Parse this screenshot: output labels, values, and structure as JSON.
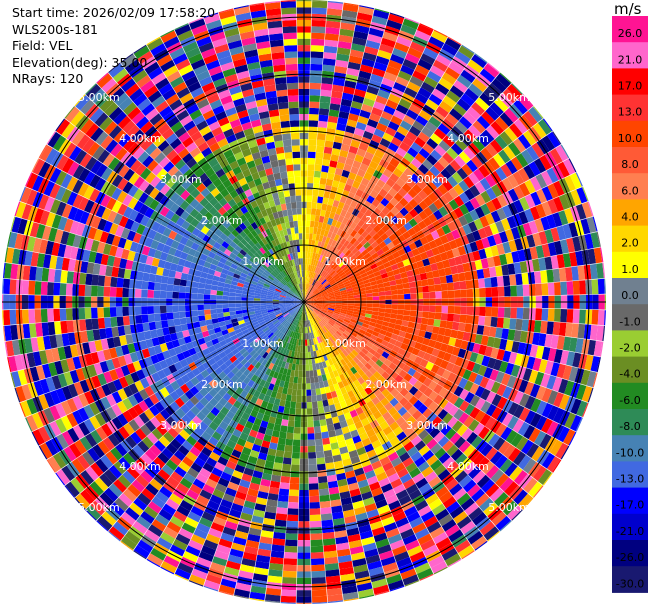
{
  "header": {
    "start_time": "Start time: 2026/02/09 17:58:20",
    "site": "WLS200s-181",
    "field": "Field: VEL",
    "elevation": "Elevation(deg): 35.00",
    "nrays": "NRays: 120"
  },
  "chart_data": {
    "type": "heatmap",
    "projection": "polar-ppi",
    "nrays": 120,
    "ring_ranges_km": [
      1.0,
      2.0,
      3.0,
      4.0,
      5.0
    ],
    "ring_labels": [
      "1.00km",
      "2.00km",
      "3.00km",
      "4.00km",
      "5.00km"
    ],
    "max_range_km": 5.3,
    "pattern": {
      "near_range_km": 3.0,
      "description_sectors": [
        {
          "azimuth_deg": 0,
          "approx_vel": 0.0
        },
        {
          "azimuth_deg": 30,
          "approx_vel": 6.0
        },
        {
          "azimuth_deg": 90,
          "approx_vel": 12.0
        },
        {
          "azimuth_deg": 150,
          "approx_vel": 4.0
        },
        {
          "azimuth_deg": 180,
          "approx_vel": 0.0
        },
        {
          "azimuth_deg": 210,
          "approx_vel": -8.0
        },
        {
          "azimuth_deg": 270,
          "approx_vel": -14.0
        },
        {
          "azimuth_deg": 330,
          "approx_vel": -8.0
        }
      ]
    },
    "colorbar": {
      "unit": "m/s",
      "ticks": [
        "26.0",
        "21.0",
        "17.0",
        "13.0",
        "10.0",
        "8.0",
        "6.0",
        "4.0",
        "2.0",
        "1.0",
        "0.0",
        "-1.0",
        "-2.0",
        "-4.0",
        "-6.0",
        "-8.0",
        "-10.0",
        "-13.0",
        "-17.0",
        "-21.0",
        "-26.0",
        "-30.0"
      ],
      "colors": [
        "#ff1493",
        "#ff66cc",
        "#ff0000",
        "#ff3333",
        "#ff4500",
        "#ff5a36",
        "#ff7f50",
        "#ffa500",
        "#ffd700",
        "#ffff00",
        "#708090",
        "#696969",
        "#9acd32",
        "#6b8e23",
        "#228b22",
        "#2e8b57",
        "#4682b4",
        "#4169e1",
        "#0000ff",
        "#0000cd",
        "#000080",
        "#191970"
      ]
    }
  }
}
